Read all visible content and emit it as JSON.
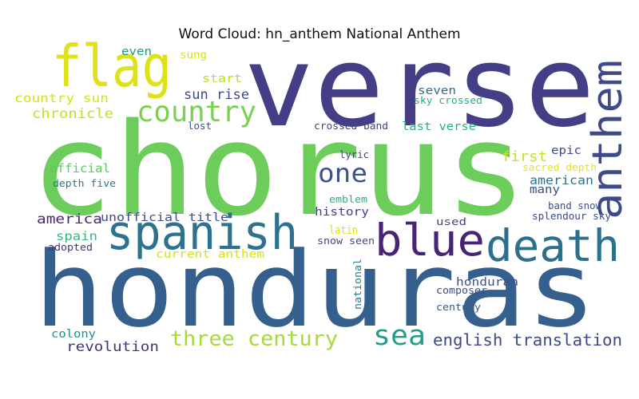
{
  "chart_data": {
    "type": "wordcloud",
    "title": "Word Cloud: hn_anthem National Anthem",
    "background": "#ffffff",
    "colormap": "viridis",
    "words": [
      {
        "text": "chorus",
        "color": "#6ccd5a"
      },
      {
        "text": "verse",
        "color": "#433e85"
      },
      {
        "text": "honduras",
        "color": "#355f8d"
      },
      {
        "text": "flag",
        "color": "#dde318"
      },
      {
        "text": "anthem",
        "color": "#3e4989"
      },
      {
        "text": "spanish",
        "color": "#2c728e"
      },
      {
        "text": "death",
        "color": "#2d708e"
      },
      {
        "text": "blue",
        "color": "#482475"
      },
      {
        "text": "country",
        "color": "#7ad151"
      },
      {
        "text": "one",
        "color": "#3b528b"
      },
      {
        "text": "sea",
        "color": "#1f9e89"
      },
      {
        "text": "three century",
        "color": "#a5db36"
      },
      {
        "text": "english translation",
        "color": "#3e4989"
      },
      {
        "text": "revolution",
        "color": "#46327e"
      },
      {
        "text": "sun rise",
        "color": "#3e4a89"
      },
      {
        "text": "country sun",
        "color": "#d2e21b"
      },
      {
        "text": "chronicle",
        "color": "#c2df23"
      },
      {
        "text": "even",
        "color": "#1f9a8a"
      },
      {
        "text": "sung",
        "color": "#d8e219"
      },
      {
        "text": "start",
        "color": "#b5de2b"
      },
      {
        "text": "seven",
        "color": "#31688e"
      },
      {
        "text": "sky crossed",
        "color": "#27ad81"
      },
      {
        "text": "lost",
        "color": "#3b528b"
      },
      {
        "text": "crossed band",
        "color": "#404387"
      },
      {
        "text": "last verse",
        "color": "#29af7f"
      },
      {
        "text": "first",
        "color": "#c8e020"
      },
      {
        "text": "epic",
        "color": "#3d4d8a"
      },
      {
        "text": "sacred depth",
        "color": "#e5e419"
      },
      {
        "text": "lyric",
        "color": "#3e4a89"
      },
      {
        "text": "official",
        "color": "#5ec962"
      },
      {
        "text": "depth five",
        "color": "#2a788e"
      },
      {
        "text": "american",
        "color": "#2c728e"
      },
      {
        "text": "many",
        "color": "#3e4c8a"
      },
      {
        "text": "emblem",
        "color": "#2db27d"
      },
      {
        "text": "band snow",
        "color": "#3b528b"
      },
      {
        "text": "splendour sky",
        "color": "#3e4989"
      },
      {
        "text": "america",
        "color": "#482878"
      },
      {
        "text": "unofficial title",
        "color": "#3e4c8a"
      },
      {
        "text": "history",
        "color": "#424086"
      },
      {
        "text": "latin",
        "color": "#dde318"
      },
      {
        "text": "used",
        "color": "#414487"
      },
      {
        "text": "spain",
        "color": "#35b779"
      },
      {
        "text": "snow seen",
        "color": "#404688"
      },
      {
        "text": "adopted",
        "color": "#46327e"
      },
      {
        "text": "current anthem",
        "color": "#d5e21a"
      },
      {
        "text": "national",
        "color": "#26828e"
      },
      {
        "text": "honduran",
        "color": "#3b528b"
      },
      {
        "text": "composer",
        "color": "#3d4e8a"
      },
      {
        "text": "century",
        "color": "#38598c"
      },
      {
        "text": "colony",
        "color": "#21918c"
      }
    ]
  }
}
